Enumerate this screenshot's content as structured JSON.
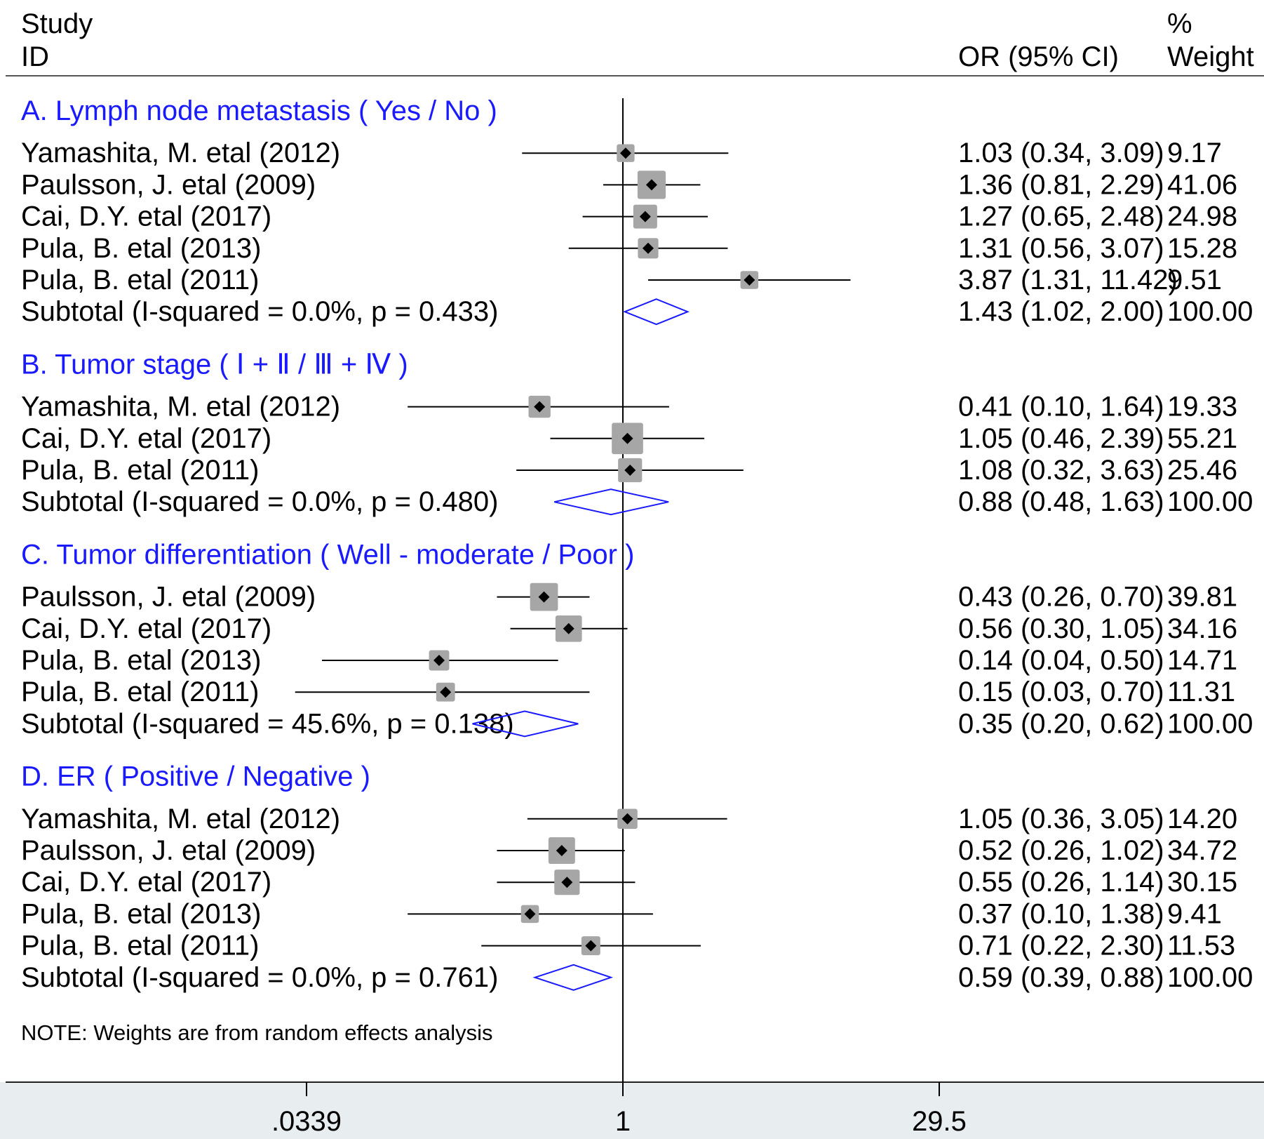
{
  "chart_data": {
    "type": "forest",
    "header": {
      "study_line1": "Study",
      "study_line2": "ID",
      "effect_label": "OR (95% CI)",
      "weight_line1": "%",
      "weight_line2": "Weight"
    },
    "x_scale": "log",
    "xlim": [
      0.0339,
      29.5
    ],
    "reference_line": 1,
    "ticks": [
      {
        "value": 0.0339,
        "label": ".0339"
      },
      {
        "value": 1,
        "label": "1"
      },
      {
        "value": 29.5,
        "label": "29.5"
      }
    ],
    "groups": [
      {
        "title": "A.  Lymph node metastasis ( Yes / No )",
        "studies": [
          {
            "label": "Yamashita, M. etal (2012)",
            "or": 1.03,
            "lo": 0.34,
            "hi": 3.09,
            "ci_text": "1.03 (0.34, 3.09)",
            "weight": 9.17,
            "weight_text": "9.17"
          },
          {
            "label": "Paulsson, J. etal (2009)",
            "or": 1.36,
            "lo": 0.81,
            "hi": 2.29,
            "ci_text": "1.36 (0.81, 2.29)",
            "weight": 41.06,
            "weight_text": "41.06"
          },
          {
            "label": "Cai, D.Y. etal (2017)",
            "or": 1.27,
            "lo": 0.65,
            "hi": 2.48,
            "ci_text": "1.27 (0.65, 2.48)",
            "weight": 24.98,
            "weight_text": "24.98"
          },
          {
            "label": "Pula, B. etal (2013)",
            "or": 1.31,
            "lo": 0.56,
            "hi": 3.07,
            "ci_text": "1.31 (0.56, 3.07)",
            "weight": 15.28,
            "weight_text": "15.28"
          },
          {
            "label": "Pula, B. etal (2011)",
            "or": 3.87,
            "lo": 1.31,
            "hi": 11.42,
            "ci_text": "3.87 (1.31, 11.42)",
            "weight": 9.51,
            "weight_text": "9.51"
          }
        ],
        "subtotal": {
          "label": "Subtotal  (I-squared = 0.0%, p = 0.433)",
          "or": 1.43,
          "lo": 1.02,
          "hi": 2.0,
          "ci_text": "1.43 (1.02, 2.00)",
          "weight_text": "100.00"
        }
      },
      {
        "title": "B.  Tumor stage (  Ⅰ  + Ⅱ  / Ⅲ + Ⅳ  )",
        "studies": [
          {
            "label": "Yamashita, M. etal (2012)",
            "or": 0.41,
            "lo": 0.1,
            "hi": 1.64,
            "ci_text": "0.41 (0.10, 1.64)",
            "weight": 19.33,
            "weight_text": "19.33"
          },
          {
            "label": "Cai, D.Y. etal (2017)",
            "or": 1.05,
            "lo": 0.46,
            "hi": 2.39,
            "ci_text": "1.05 (0.46, 2.39)",
            "weight": 55.21,
            "weight_text": "55.21"
          },
          {
            "label": "Pula, B. etal (2011)",
            "or": 1.08,
            "lo": 0.32,
            "hi": 3.63,
            "ci_text": "1.08 (0.32, 3.63)",
            "weight": 25.46,
            "weight_text": "25.46"
          }
        ],
        "subtotal": {
          "label": "Subtotal  (I-squared = 0.0%, p = 0.480)",
          "or": 0.88,
          "lo": 0.48,
          "hi": 1.63,
          "ci_text": "0.88 (0.48, 1.63)",
          "weight_text": "100.00"
        }
      },
      {
        "title": "C.  Tumor differentiation ( Well - moderate / Poor )",
        "studies": [
          {
            "label": "Paulsson, J. etal (2009)",
            "or": 0.43,
            "lo": 0.26,
            "hi": 0.7,
            "ci_text": "0.43 (0.26, 0.70)",
            "weight": 39.81,
            "weight_text": "39.81"
          },
          {
            "label": "Cai, D.Y. etal (2017)",
            "or": 0.56,
            "lo": 0.3,
            "hi": 1.05,
            "ci_text": "0.56 (0.30, 1.05)",
            "weight": 34.16,
            "weight_text": "34.16"
          },
          {
            "label": "Pula, B. etal (2013)",
            "or": 0.14,
            "lo": 0.04,
            "hi": 0.5,
            "ci_text": "0.14 (0.04, 0.50)",
            "weight": 14.71,
            "weight_text": "14.71"
          },
          {
            "label": "Pula, B. etal (2011)",
            "or": 0.15,
            "lo": 0.03,
            "hi": 0.7,
            "ci_text": "0.15 (0.03, 0.70)",
            "weight": 11.31,
            "weight_text": "11.31"
          }
        ],
        "subtotal": {
          "label": "Subtotal  (I-squared = 45.6%, p = 0.138)",
          "or": 0.35,
          "lo": 0.2,
          "hi": 0.62,
          "ci_text": "0.35 (0.20, 0.62)",
          "weight_text": "100.00"
        }
      },
      {
        "title": "D.  ER ( Positive / Negative )",
        "studies": [
          {
            "label": "Yamashita, M. etal (2012)",
            "or": 1.05,
            "lo": 0.36,
            "hi": 3.05,
            "ci_text": "1.05 (0.36, 3.05)",
            "weight": 14.2,
            "weight_text": "14.20"
          },
          {
            "label": "Paulsson, J. etal (2009)",
            "or": 0.52,
            "lo": 0.26,
            "hi": 1.02,
            "ci_text": "0.52 (0.26, 1.02)",
            "weight": 34.72,
            "weight_text": "34.72"
          },
          {
            "label": "Cai, D.Y. etal (2017)",
            "or": 0.55,
            "lo": 0.26,
            "hi": 1.14,
            "ci_text": "0.55 (0.26, 1.14)",
            "weight": 30.15,
            "weight_text": "30.15"
          },
          {
            "label": "Pula, B. etal (2013)",
            "or": 0.37,
            "lo": 0.1,
            "hi": 1.38,
            "ci_text": "0.37 (0.10, 1.38)",
            "weight": 9.41,
            "weight_text": "9.41"
          },
          {
            "label": "Pula, B. etal (2011)",
            "or": 0.71,
            "lo": 0.22,
            "hi": 2.3,
            "ci_text": "0.71 (0.22, 2.30)",
            "weight": 11.53,
            "weight_text": "11.53"
          }
        ],
        "subtotal": {
          "label": "Subtotal  (I-squared = 0.0%, p = 0.761)",
          "or": 0.59,
          "lo": 0.39,
          "hi": 0.88,
          "ci_text": "0.59 (0.39, 0.88)",
          "weight_text": "100.00"
        }
      }
    ],
    "note": "NOTE: Weights are from random effects analysis",
    "colors": {
      "group_title": "#1a1aff",
      "diamond": "#1a1aff",
      "weight_box": "#a6a6a6",
      "axis_band": "#e8eef0",
      "text": "#000000"
    }
  }
}
